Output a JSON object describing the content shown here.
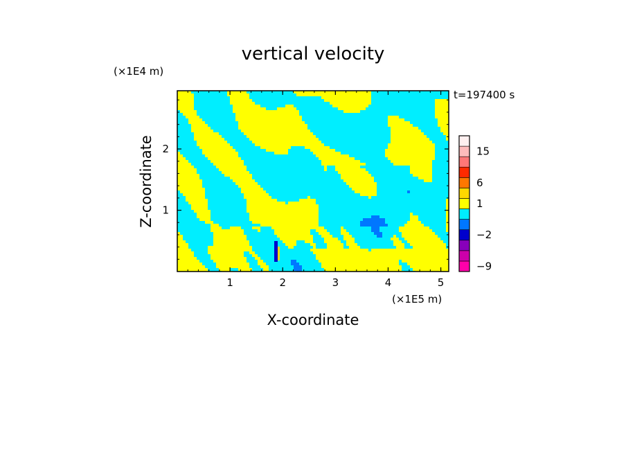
{
  "chart_data": {
    "type": "heatmap",
    "title": "vertical velocity",
    "xlabel": "X-coordinate",
    "ylabel": "Z-coordinate",
    "x_unit": "(×1E5 m)",
    "y_unit": "(×1E4 m)",
    "time_label": "t=197400 s",
    "xlim": [
      0,
      5.15
    ],
    "ylim": [
      0,
      2.95
    ],
    "x_ticks": [
      1,
      2,
      3,
      4,
      5
    ],
    "y_ticks": [
      1,
      2
    ],
    "legend_placement": "right",
    "colorbar": {
      "levels": [
        {
          "label": "-9",
          "color": "#ff00aa"
        },
        {
          "label": "",
          "color": "#cc00aa"
        },
        {
          "label": "",
          "color": "#8800bb"
        },
        {
          "label": "-2",
          "color": "#0000cc"
        },
        {
          "label": "",
          "color": "#0077ff"
        },
        {
          "label": "",
          "color": "#00eeff"
        },
        {
          "label": "1",
          "color": "#ffff00"
        },
        {
          "label": "",
          "color": "#ffd700"
        },
        {
          "label": "6",
          "color": "#ff7700"
        },
        {
          "label": "",
          "color": "#ff2a00"
        },
        {
          "label": "",
          "color": "#ff7777"
        },
        {
          "label": "15",
          "color": "#ffbbbb"
        },
        {
          "label": "",
          "color": "#fff0f0"
        }
      ]
    }
  }
}
